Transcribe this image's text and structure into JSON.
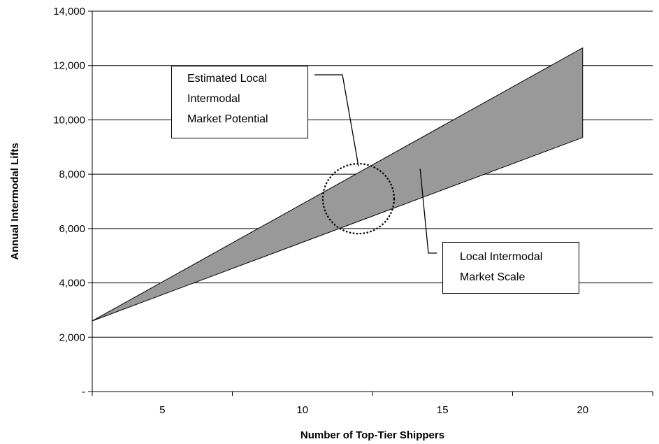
{
  "chart_data": {
    "type": "area",
    "title": "",
    "xlabel": "Number of Top-Tier Shippers",
    "ylabel": "Annual Intermodal Lifts",
    "xlim": [
      2.5,
      22.5
    ],
    "ylim": [
      0,
      14000
    ],
    "x_ticks": [
      5,
      10,
      15,
      20
    ],
    "y_ticks": [
      0,
      2000,
      4000,
      6000,
      8000,
      10000,
      12000,
      14000
    ],
    "y_tick_labels": [
      "-",
      "2,000",
      "4,000",
      "6,000",
      "8,000",
      "10,000",
      "12,000",
      "14,000"
    ],
    "grid": "horizontal",
    "legend": "none",
    "band": {
      "x": [
        2.5,
        20
      ],
      "upper": [
        2600,
        12650
      ],
      "lower": [
        2600,
        9350
      ],
      "fill": "#999999"
    },
    "highlight_circle": {
      "center": [
        12,
        7100
      ]
    },
    "annotations": [
      {
        "lines": [
          "Estimated Local",
          "Intermodal",
          "Market Potential"
        ],
        "points_to": [
          12,
          8300
        ]
      },
      {
        "lines": [
          "Local Intermodal",
          "Market Scale"
        ],
        "points_to": [
          14.2,
          8200
        ]
      }
    ]
  }
}
